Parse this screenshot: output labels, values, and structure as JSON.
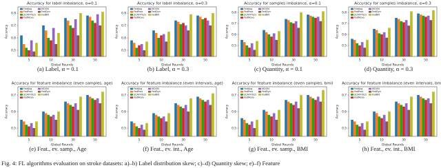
{
  "chart_data": [
    {
      "type": "bar",
      "title": "Accuracy for label imbalance, α=0.1",
      "caption": "(a) Label, α = 0.1",
      "xlabel": "Global Rounds",
      "ylabel": "Accuracy",
      "categories": [
        "5",
        "10",
        "30",
        "50"
      ],
      "ylim": [
        0.45,
        0.85
      ],
      "yticks": [
        0.5,
        0.6,
        0.7,
        0.8
      ],
      "series": [
        {
          "name": "FedAvg",
          "color": "#1f77b4",
          "values": [
            0.62,
            0.7,
            0.76,
            0.78
          ]
        },
        {
          "name": "FedProx",
          "color": "#ff7f0e",
          "values": [
            0.55,
            0.66,
            0.74,
            0.77
          ]
        },
        {
          "name": "SCAFFOLD",
          "color": "#2ca02c",
          "values": [
            0.52,
            0.6,
            0.7,
            0.74
          ]
        },
        {
          "name": "FedNova",
          "color": "#d62728",
          "values": [
            0.5,
            0.58,
            0.68,
            0.72
          ]
        },
        {
          "name": "MOON",
          "color": "#9467bd",
          "values": [
            0.58,
            0.68,
            0.75,
            0.79
          ]
        },
        {
          "name": "FedDyn",
          "color": "#8c564b",
          "values": [
            0.49,
            0.55,
            0.62,
            0.7
          ]
        },
        {
          "name": "FedBN",
          "color": "#bcbd22",
          "values": [
            0.56,
            0.64,
            0.8,
            0.81
          ]
        }
      ]
    },
    {
      "type": "bar",
      "title": "Accuracy for label imbalance, α=0.3",
      "caption": "(b) Label, α = 0.3",
      "xlabel": "Global Rounds",
      "ylabel": "Accuracy",
      "categories": [
        "5",
        "10",
        "30",
        "50"
      ],
      "ylim": [
        0.45,
        0.85
      ],
      "yticks": [
        0.5,
        0.6,
        0.7,
        0.8
      ],
      "series": [
        {
          "name": "FedAvg",
          "color": "#1f77b4",
          "values": [
            0.58,
            0.66,
            0.74,
            0.78
          ]
        },
        {
          "name": "FedProx",
          "color": "#ff7f0e",
          "values": [
            0.56,
            0.64,
            0.73,
            0.77
          ]
        },
        {
          "name": "SCAFFOLD",
          "color": "#2ca02c",
          "values": [
            0.52,
            0.6,
            0.71,
            0.75
          ]
        },
        {
          "name": "FedNova",
          "color": "#d62728",
          "values": [
            0.54,
            0.62,
            0.72,
            0.76
          ]
        },
        {
          "name": "MOON",
          "color": "#9467bd",
          "values": [
            0.55,
            0.63,
            0.7,
            0.74
          ]
        },
        {
          "name": "FedDyn",
          "color": "#8c564b",
          "values": [
            0.5,
            0.57,
            0.66,
            0.7
          ]
        },
        {
          "name": "FedBN",
          "color": "#bcbd22",
          "values": [
            0.57,
            0.65,
            0.79,
            0.8
          ]
        }
      ]
    },
    {
      "type": "bar",
      "title": "Accuracy for samples imbalance, α=0.1",
      "caption": "(c) Quantity, α = 0.1",
      "xlabel": "Global Rounds",
      "ylabel": "Accuracy",
      "categories": [
        "5",
        "10",
        "30",
        "50"
      ],
      "ylim": [
        0.4,
        0.85
      ],
      "yticks": [
        0.5,
        0.6,
        0.7,
        0.8
      ],
      "series": [
        {
          "name": "FedAvg",
          "color": "#1f77b4",
          "values": [
            0.55,
            0.64,
            0.74,
            0.78
          ]
        },
        {
          "name": "FedProx",
          "color": "#ff7f0e",
          "values": [
            0.53,
            0.62,
            0.73,
            0.77
          ]
        },
        {
          "name": "SCAFFOLD",
          "color": "#2ca02c",
          "values": [
            0.5,
            0.6,
            0.71,
            0.76
          ]
        },
        {
          "name": "FedNova",
          "color": "#d62728",
          "values": [
            0.48,
            0.58,
            0.7,
            0.75
          ]
        },
        {
          "name": "MOON",
          "color": "#9467bd",
          "values": [
            0.52,
            0.61,
            0.72,
            0.76
          ]
        },
        {
          "name": "FedDyn",
          "color": "#8c564b",
          "values": [
            0.46,
            0.55,
            0.66,
            0.72
          ]
        },
        {
          "name": "FedBN",
          "color": "#bcbd22",
          "values": [
            0.54,
            0.63,
            0.8,
            0.81
          ]
        }
      ]
    },
    {
      "type": "bar",
      "title": "Accuracy for samples imbalance, α=0.3",
      "caption": "(d) Quantity, α = 0.3",
      "xlabel": "Global Rounds",
      "ylabel": "Accuracy",
      "categories": [
        "5",
        "10",
        "30",
        "50"
      ],
      "ylim": [
        0.4,
        0.85
      ],
      "yticks": [
        0.5,
        0.6,
        0.7,
        0.8
      ],
      "series": [
        {
          "name": "FedAvg",
          "color": "#1f77b4",
          "values": [
            0.56,
            0.65,
            0.75,
            0.79
          ]
        },
        {
          "name": "FedProx",
          "color": "#ff7f0e",
          "values": [
            0.55,
            0.64,
            0.74,
            0.78
          ]
        },
        {
          "name": "SCAFFOLD",
          "color": "#2ca02c",
          "values": [
            0.52,
            0.61,
            0.72,
            0.77
          ]
        },
        {
          "name": "FedNova",
          "color": "#d62728",
          "values": [
            0.5,
            0.6,
            0.71,
            0.76
          ]
        },
        {
          "name": "MOON",
          "color": "#9467bd",
          "values": [
            0.53,
            0.62,
            0.73,
            0.77
          ]
        },
        {
          "name": "FedDyn",
          "color": "#8c564b",
          "values": [
            0.48,
            0.57,
            0.68,
            0.73
          ]
        },
        {
          "name": "FedBN",
          "color": "#bcbd22",
          "values": [
            0.55,
            0.66,
            0.81,
            0.82
          ]
        }
      ]
    },
    {
      "type": "bar",
      "title": "Accuracy for feature imbalance (even samples, age)",
      "caption": "(e) Feat., ev. samp., Age",
      "xlabel": "Global Rounds",
      "ylabel": "Accuracy",
      "categories": [
        "5",
        "10",
        "30",
        "50"
      ],
      "ylim": [
        0.45,
        0.75
      ],
      "yticks": [
        0.5,
        0.6,
        0.7
      ],
      "series": [
        {
          "name": "FedAvg",
          "color": "#1f77b4",
          "values": [
            0.55,
            0.6,
            0.66,
            0.7
          ]
        },
        {
          "name": "FedProx",
          "color": "#ff7f0e",
          "values": [
            0.54,
            0.59,
            0.65,
            0.69
          ]
        },
        {
          "name": "SCAFFOLD",
          "color": "#2ca02c",
          "values": [
            0.52,
            0.58,
            0.64,
            0.68
          ]
        },
        {
          "name": "FedNova",
          "color": "#d62728",
          "values": [
            0.51,
            0.57,
            0.63,
            0.67
          ]
        },
        {
          "name": "MOON",
          "color": "#9467bd",
          "values": [
            0.53,
            0.58,
            0.65,
            0.68
          ]
        },
        {
          "name": "FedDyn",
          "color": "#8c564b",
          "values": [
            0.5,
            0.55,
            0.61,
            0.65
          ]
        },
        {
          "name": "FedBN",
          "color": "#bcbd22",
          "values": [
            0.54,
            0.6,
            0.69,
            0.72
          ]
        }
      ]
    },
    {
      "type": "bar",
      "title": "Accuracy for feature imbalance (even intervals, age)",
      "caption": "(f) Feat., ev. int., Age",
      "xlabel": "Global Rounds",
      "ylabel": "Accuracy",
      "categories": [
        "5",
        "10",
        "30",
        "50"
      ],
      "ylim": [
        0.45,
        0.75
      ],
      "yticks": [
        0.5,
        0.6,
        0.7
      ],
      "series": [
        {
          "name": "FedAvg",
          "color": "#1f77b4",
          "values": [
            0.54,
            0.59,
            0.65,
            0.69
          ]
        },
        {
          "name": "FedProx",
          "color": "#ff7f0e",
          "values": [
            0.53,
            0.58,
            0.64,
            0.68
          ]
        },
        {
          "name": "SCAFFOLD",
          "color": "#2ca02c",
          "values": [
            0.51,
            0.57,
            0.63,
            0.67
          ]
        },
        {
          "name": "FedNova",
          "color": "#d62728",
          "values": [
            0.5,
            0.56,
            0.62,
            0.66
          ]
        },
        {
          "name": "MOON",
          "color": "#9467bd",
          "values": [
            0.52,
            0.57,
            0.64,
            0.67
          ]
        },
        {
          "name": "FedDyn",
          "color": "#8c564b",
          "values": [
            0.49,
            0.54,
            0.6,
            0.64
          ]
        },
        {
          "name": "FedBN",
          "color": "#bcbd22",
          "values": [
            0.53,
            0.59,
            0.68,
            0.71
          ]
        }
      ]
    },
    {
      "type": "bar",
      "title": "Accuracy for feature imbalance (even samples, bmi)",
      "caption": "(g) Feat., ev. samp., BMI",
      "xlabel": "Global Rounds",
      "ylabel": "Accuracy",
      "categories": [
        "5",
        "10",
        "30",
        "50"
      ],
      "ylim": [
        0.45,
        0.75
      ],
      "yticks": [
        0.5,
        0.6,
        0.7
      ],
      "series": [
        {
          "name": "FedAvg",
          "color": "#1f77b4",
          "values": [
            0.56,
            0.61,
            0.67,
            0.7
          ]
        },
        {
          "name": "FedProx",
          "color": "#ff7f0e",
          "values": [
            0.55,
            0.6,
            0.66,
            0.69
          ]
        },
        {
          "name": "SCAFFOLD",
          "color": "#2ca02c",
          "values": [
            0.53,
            0.58,
            0.65,
            0.68
          ]
        },
        {
          "name": "FedNova",
          "color": "#d62728",
          "values": [
            0.52,
            0.57,
            0.64,
            0.67
          ]
        },
        {
          "name": "MOON",
          "color": "#9467bd",
          "values": [
            0.54,
            0.59,
            0.66,
            0.69
          ]
        },
        {
          "name": "FedDyn",
          "color": "#8c564b",
          "values": [
            0.5,
            0.55,
            0.62,
            0.66
          ]
        },
        {
          "name": "FedBN",
          "color": "#bcbd22",
          "values": [
            0.55,
            0.61,
            0.7,
            0.73
          ]
        }
      ]
    },
    {
      "type": "bar",
      "title": "Accuracy for feature imbalance (even intervals, bmi)",
      "caption": "(h) Feat., ev. int., BMI",
      "xlabel": "Global Rounds",
      "ylabel": "Accuracy",
      "categories": [
        "5",
        "10",
        "30",
        "50"
      ],
      "ylim": [
        0.45,
        0.75
      ],
      "yticks": [
        0.5,
        0.6,
        0.7
      ],
      "series": [
        {
          "name": "FedAvg",
          "color": "#1f77b4",
          "values": [
            0.55,
            0.6,
            0.66,
            0.7
          ]
        },
        {
          "name": "FedProx",
          "color": "#ff7f0e",
          "values": [
            0.54,
            0.59,
            0.65,
            0.69
          ]
        },
        {
          "name": "SCAFFOLD",
          "color": "#2ca02c",
          "values": [
            0.52,
            0.57,
            0.64,
            0.68
          ]
        },
        {
          "name": "FedNova",
          "color": "#d62728",
          "values": [
            0.51,
            0.56,
            0.63,
            0.67
          ]
        },
        {
          "name": "MOON",
          "color": "#9467bd",
          "values": [
            0.53,
            0.58,
            0.65,
            0.68
          ]
        },
        {
          "name": "FedDyn",
          "color": "#8c564b",
          "values": [
            0.49,
            0.54,
            0.61,
            0.65
          ]
        },
        {
          "name": "FedBN",
          "color": "#bcbd22",
          "values": [
            0.54,
            0.6,
            0.69,
            0.72
          ]
        }
      ]
    }
  ],
  "figure_caption": "Fig. 4: FL algorithms evaluation on stroke datasets: a)–b) Label distribution skew; c)–d) Quantity skew; e)–f) Feature"
}
